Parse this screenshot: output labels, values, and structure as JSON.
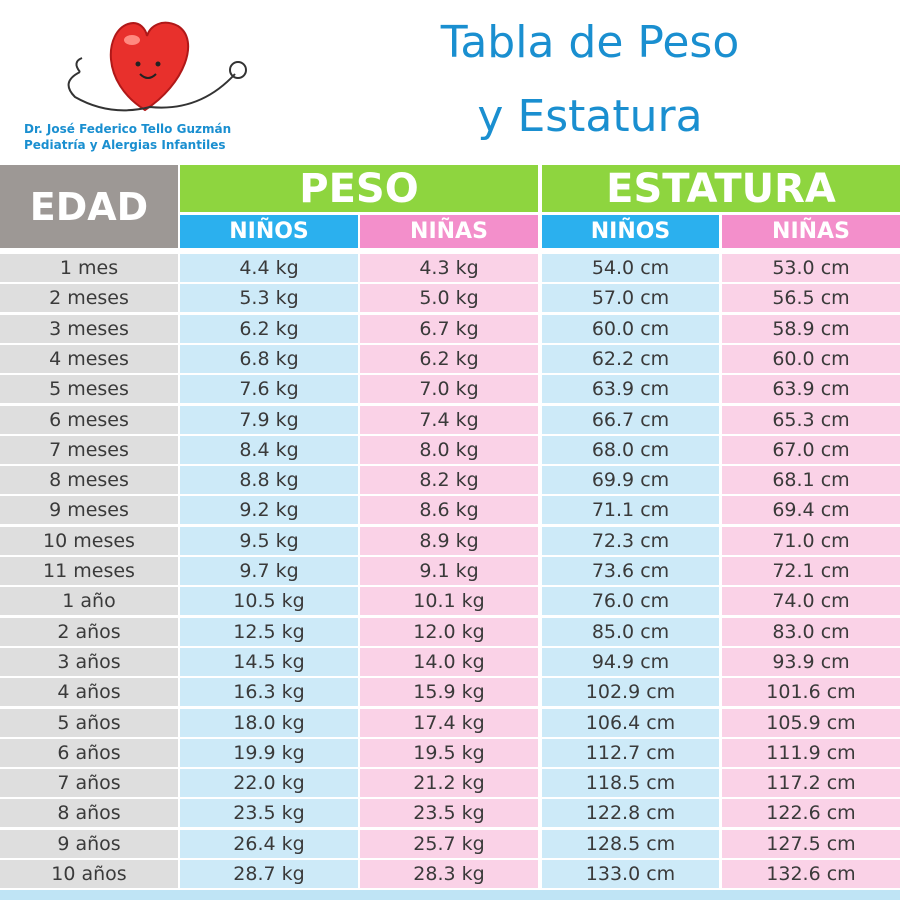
{
  "header": {
    "doctor_name": "Dr. José Federico Tello Guzmán",
    "specialty": "Pediatría y Alergias Infantiles",
    "title_lines": [
      "Tabla de Peso",
      "y Estatura"
    ]
  },
  "table": {
    "edad_header": "EDAD",
    "peso_header": "PESO",
    "estatura_header": "ESTATURA",
    "subheaders": [
      "NIÑOS",
      "NIÑAS",
      "NIÑOS",
      "NIÑAS"
    ],
    "rows": [
      [
        "1 mes",
        "4.4 kg",
        "4.3 kg",
        "54.0 cm",
        "53.0 cm"
      ],
      [
        "2 meses",
        "5.3 kg",
        "5.0 kg",
        "57.0 cm",
        "56.5 cm"
      ],
      [
        "3 meses",
        "6.2 kg",
        "6.7 kg",
        "60.0 cm",
        "58.9 cm"
      ],
      [
        "4 meses",
        "6.8 kg",
        "6.2 kg",
        "62.2 cm",
        "60.0 cm"
      ],
      [
        "5 meses",
        "7.6 kg",
        "7.0 kg",
        "63.9 cm",
        "63.9 cm"
      ],
      [
        "6 meses",
        "7.9 kg",
        "7.4 kg",
        "66.7 cm",
        "65.3 cm"
      ],
      [
        "7 meses",
        "8.4 kg",
        "8.0 kg",
        "68.0 cm",
        "67.0 cm"
      ],
      [
        "8 meses",
        "8.8 kg",
        "8.2 kg",
        "69.9 cm",
        "68.1 cm"
      ],
      [
        "9 meses",
        "9.2 kg",
        "8.6 kg",
        "71.1 cm",
        "69.4 cm"
      ],
      [
        "10 meses",
        "9.5 kg",
        "8.9 kg",
        "72.3 cm",
        "71.0 cm"
      ],
      [
        "11 meses",
        "9.7 kg",
        "9.1 kg",
        "73.6 cm",
        "72.1 cm"
      ],
      [
        "1 año",
        "10.5 kg",
        "10.1 kg",
        "76.0 cm",
        "74.0 cm"
      ],
      [
        "2 años",
        "12.5 kg",
        "12.0 kg",
        "85.0 cm",
        "83.0 cm"
      ],
      [
        "3 años",
        "14.5 kg",
        "14.0 kg",
        "94.9 cm",
        "93.9 cm"
      ],
      [
        "4 años",
        "16.3 kg",
        "15.9 kg",
        "102.9 cm",
        "101.6 cm"
      ],
      [
        "5 años",
        "18.0 kg",
        "17.4 kg",
        "106.4 cm",
        "105.9 cm"
      ],
      [
        "6 años",
        "19.9 kg",
        "19.5 kg",
        "112.7 cm",
        "111.9 cm"
      ],
      [
        "7 años",
        "22.0 kg",
        "21.2 kg",
        "118.5 cm",
        "117.2 cm"
      ],
      [
        "8 años",
        "23.5 kg",
        "23.5 kg",
        "122.8 cm",
        "122.6 cm"
      ],
      [
        "9 años",
        "26.4 kg",
        "25.7 kg",
        "128.5 cm",
        "127.5 cm"
      ],
      [
        "10 años",
        "28.7 kg",
        "28.3 kg",
        "133.0 cm",
        "132.6 cm"
      ]
    ]
  }
}
